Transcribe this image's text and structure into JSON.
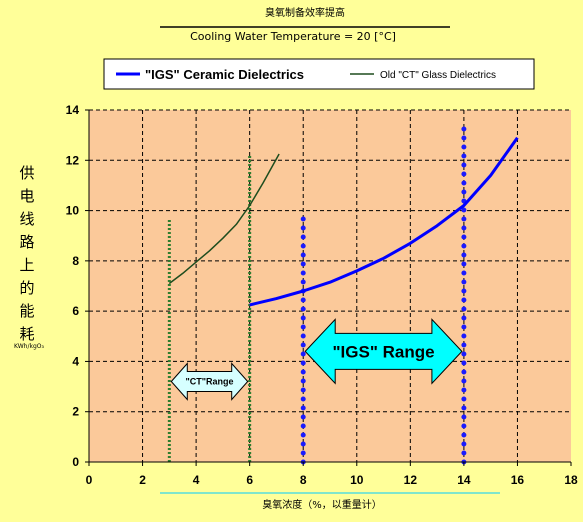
{
  "chart_data": {
    "type": "line",
    "title": "臭氧制备效率提高",
    "subtitle": "Cooling Water Temperature = 20 [°C]",
    "xlabel": "臭氧浓度（%，以重量计）",
    "ylabel": "供电线路上的能耗",
    "ylabel_unit": "KWh/kgO₃",
    "xlim": [
      0,
      18
    ],
    "ylim": [
      0,
      14
    ],
    "x_ticks": [
      0,
      2,
      4,
      6,
      8,
      10,
      12,
      14,
      16,
      18
    ],
    "y_ticks": [
      0,
      2,
      4,
      6,
      8,
      10,
      12,
      14
    ],
    "x_tick_labels": [
      "0",
      "2",
      "4",
      "6",
      "8",
      "10",
      "12",
      "14",
      "16",
      "18"
    ],
    "y_tick_labels": [
      "0",
      "2",
      "4",
      "6",
      "8",
      "10",
      "12",
      "14"
    ],
    "grid": true,
    "plot_background": "#FBC99A",
    "legend_position": "top",
    "series": [
      {
        "name": "\"IGS\" Ceramic Dielectrics",
        "color": "#0000FF",
        "x": [
          6,
          7,
          8,
          9,
          10,
          11,
          12,
          13,
          14,
          15,
          16
        ],
        "y": [
          6.25,
          6.5,
          6.8,
          7.15,
          7.6,
          8.1,
          8.7,
          9.4,
          10.2,
          11.4,
          12.9
        ]
      },
      {
        "name": "Old \"CT\" Glass Dielectrics",
        "color": "#1E4D1E",
        "x": [
          3,
          3.5,
          4,
          4.5,
          5,
          5.5,
          6,
          6.5,
          7.1
        ],
        "y": [
          7.1,
          7.5,
          7.95,
          8.4,
          8.9,
          9.45,
          10.2,
          11.1,
          12.25
        ]
      }
    ],
    "vertical_markers": [
      {
        "x": 3,
        "y_top": 9.7,
        "color": "#2E7D2E",
        "style": "dotted"
      },
      {
        "x": 6,
        "y_top": 12.2,
        "color": "#2E7D2E",
        "style": "dotted"
      },
      {
        "x": 8,
        "y_top": 9.8,
        "color": "#1A1AFF",
        "style": "dotted"
      },
      {
        "x": 14,
        "y_top": 13.3,
        "color": "#1A1AFF",
        "style": "dotted"
      }
    ],
    "annotations": [
      {
        "text": "\"CT\"Range",
        "x_from": 3,
        "x_to": 6,
        "y": 3.2,
        "fill": "#D6FFFF"
      },
      {
        "text": "\"IGS\" Range",
        "x_from": 8,
        "x_to": 14,
        "y": 4.4,
        "fill": "#00FFFF"
      }
    ]
  }
}
